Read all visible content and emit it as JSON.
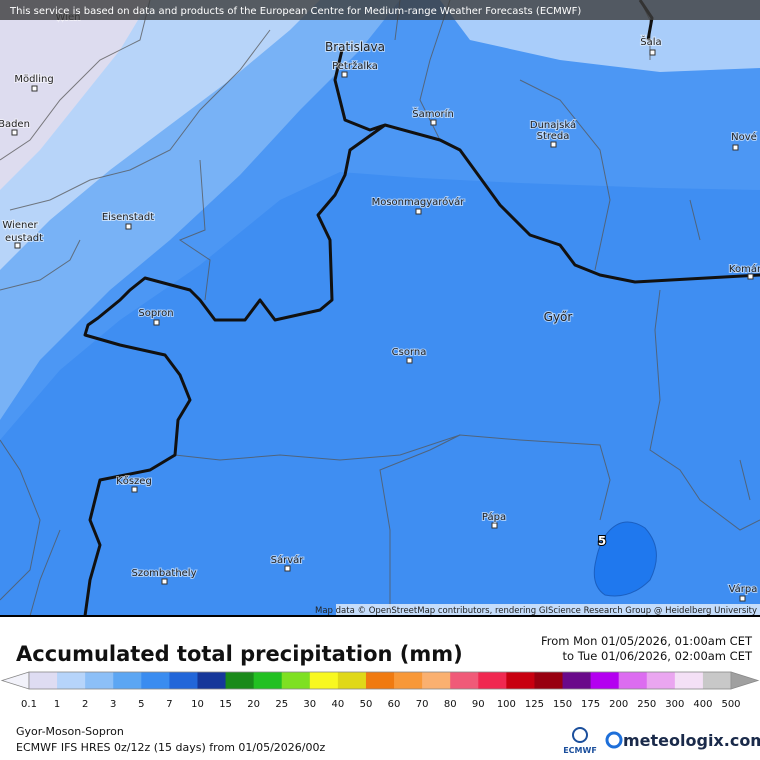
{
  "header": {
    "notice": "This service is based on data and products of the European Centre for Medium-range Weather Forecasts (ECMWF)"
  },
  "map": {
    "places": [
      "Wien",
      "Bratislava",
      "Petržalka",
      "Šala",
      "Mödling",
      "Šamorín",
      "Dunajská",
      "Streda",
      "Nové",
      "Baden",
      "Eisenstadt",
      "Wiener",
      "eustadt",
      "Mosonmagyaróvár",
      "Komár",
      "Győr",
      "Sopron",
      "Csorna",
      "Várpa",
      "Kőszeg",
      "Pápa",
      "Szombathely",
      "Sárvár"
    ],
    "contour_label": "5",
    "attribution": "Map data © OpenStreetMap contributors, rendering GIScience Research Group @ Heidelberg University"
  },
  "legend": {
    "title": "Accumulated total precipitation (mm)",
    "from": "From Mon 01/05/2026, 01:00am CET",
    "to": "to Tue 01/06/2026, 02:00am CET",
    "labels": [
      "0.1",
      "1",
      "2",
      "3",
      "5",
      "7",
      "10",
      "15",
      "20",
      "25",
      "30",
      "40",
      "50",
      "60",
      "70",
      "80",
      "90",
      "100",
      "125",
      "150",
      "175",
      "200",
      "250",
      "300",
      "400",
      "500"
    ],
    "colors": [
      "#dedcf2",
      "#b6d4fa",
      "#8cbff7",
      "#5ca6f3",
      "#3a8cf0",
      "#2266d9",
      "#16379a",
      "#1a8a1a",
      "#22c022",
      "#7ee022",
      "#f8f820",
      "#e0d818",
      "#f07a10",
      "#f89838",
      "#fab070",
      "#f05a78",
      "#f02850",
      "#c80010",
      "#980010",
      "#6a0a8a",
      "#b400f0",
      "#dc6cf0",
      "#eaa6f0",
      "#f4e0f6",
      "#c8c8c8"
    ],
    "under_color": "#f2f2fa",
    "over_color": "#a0a0a0"
  },
  "footer": {
    "region": "Gyor-Moson-Sopron",
    "model": "ECMWF IFS HRES 0z/12z (15 days) from 01/05/2026/00z",
    "ecmwf": "ECMWF",
    "brand": "meteologix.com"
  }
}
